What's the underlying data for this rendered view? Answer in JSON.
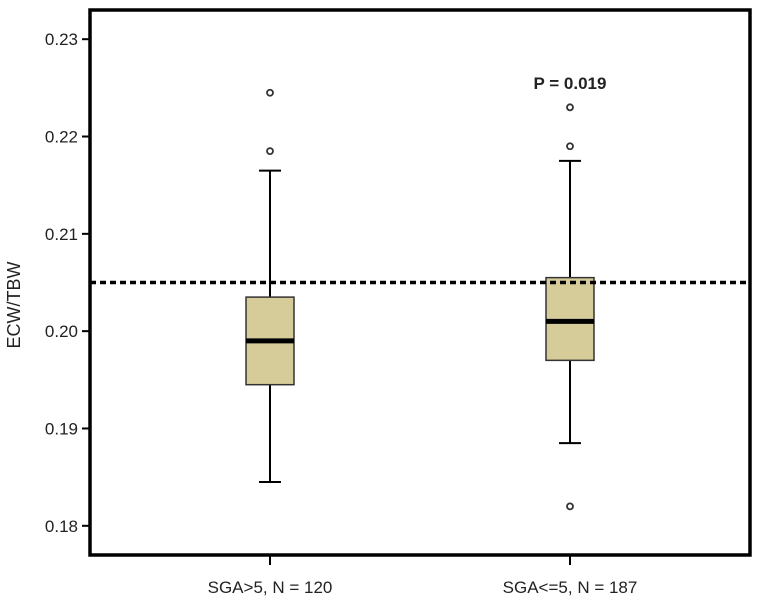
{
  "chart_data": {
    "type": "box",
    "title": "",
    "xlabel": "",
    "ylabel": "ECW/TBW",
    "ylim": [
      0.177,
      0.233
    ],
    "yticks": [
      0.18,
      0.19,
      0.2,
      0.21,
      0.22,
      0.23
    ],
    "ytick_labels": [
      "0.18",
      "0.19",
      "0.20",
      "0.21",
      "0.22",
      "0.23"
    ],
    "categories": [
      "SGA>5, N = 120",
      "SGA<=5, N = 187"
    ],
    "boxes": [
      {
        "whisker_low": 0.1845,
        "q1": 0.1945,
        "median": 0.199,
        "q3": 0.2035,
        "whisker_high": 0.2165,
        "outliers": [
          0.2185,
          0.2245
        ]
      },
      {
        "whisker_low": 0.1885,
        "q1": 0.197,
        "median": 0.201,
        "q3": 0.2055,
        "whisker_high": 0.2175,
        "outliers": [
          0.182,
          0.219,
          0.223
        ]
      }
    ],
    "reference_line": {
      "y": 0.205,
      "style": "dotted"
    },
    "annotations": [
      {
        "text": "P = 0.019",
        "category_index": 1,
        "y": 0.2255
      }
    ],
    "box_color": "#d6cc9a",
    "grid": false
  }
}
